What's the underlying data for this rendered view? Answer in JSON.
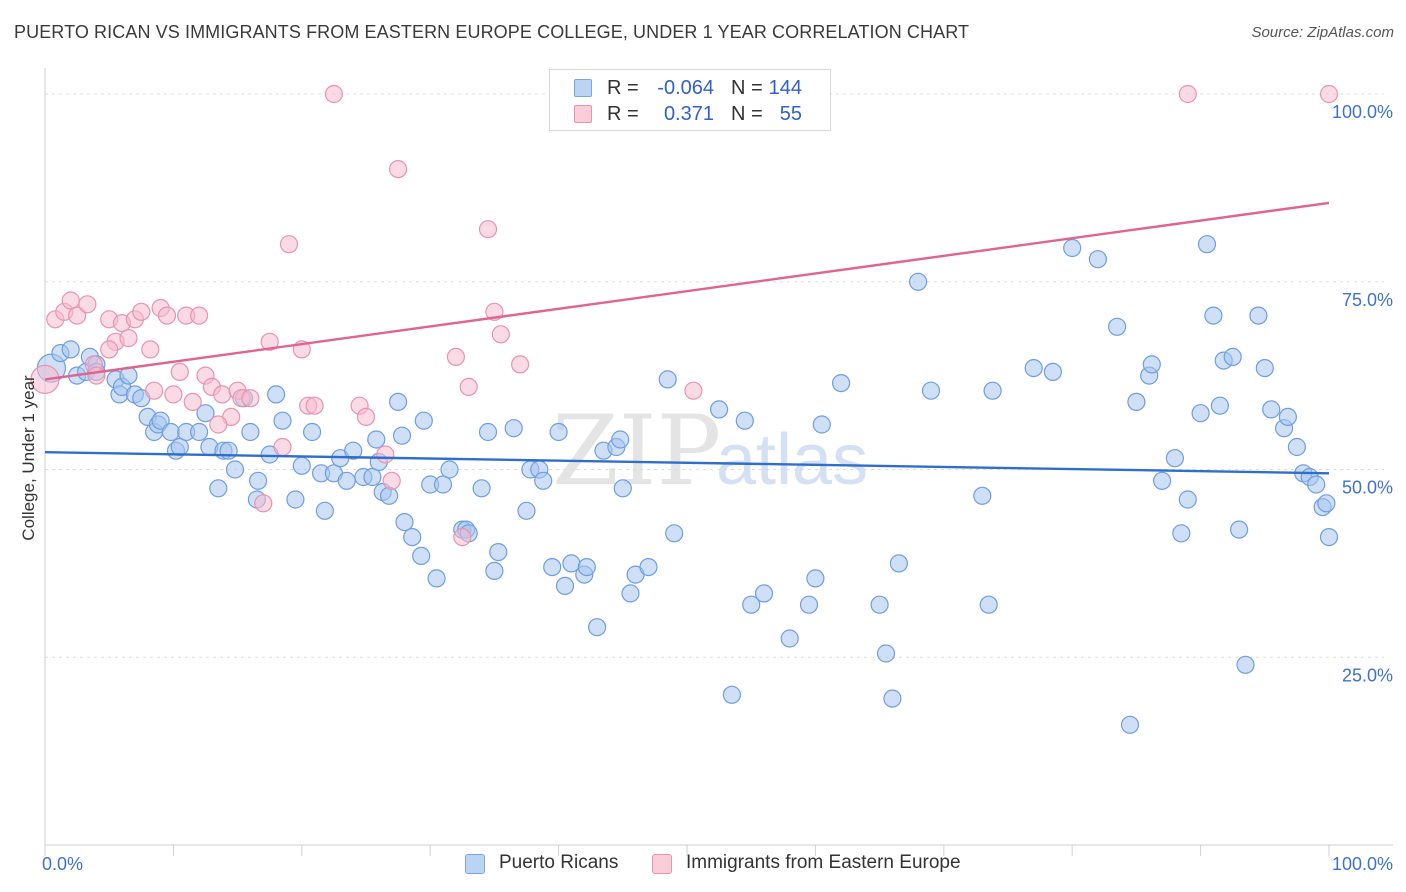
{
  "header": {
    "title": "PUERTO RICAN VS IMMIGRANTS FROM EASTERN EUROPE COLLEGE, UNDER 1 YEAR CORRELATION CHART",
    "source": "Source: ZipAtlas.com"
  },
  "legend": {
    "rows": [
      {
        "r_label": "R =",
        "r_value": "-0.064",
        "n_label": "N =",
        "n_value": "144"
      },
      {
        "r_label": "R =",
        "r_value": "0.371",
        "n_label": "N =",
        "n_value": "55"
      }
    ],
    "bottom": [
      "Puerto Ricans",
      "Immigrants from Eastern Europe"
    ]
  },
  "watermark": {
    "zip": "ZIP",
    "atlas": "atlas"
  },
  "colors": {
    "blue_fill": "#a8c4ef",
    "blue_stroke": "#6f9ee0",
    "blue_line": "#2f6fcb",
    "pink_fill": "#f6bccd",
    "pink_stroke": "#e993b0",
    "pink_line": "#e0648f",
    "axis_label": "#3f72c9",
    "grid": "#dddddd"
  },
  "chart_data": {
    "type": "scatter",
    "title": "PUERTO RICAN VS IMMIGRANTS FROM EASTERN EUROPE COLLEGE, UNDER 1 YEAR CORRELATION CHART",
    "xlabel": "",
    "ylabel": "College, Under 1 year",
    "xlim": [
      0,
      100
    ],
    "ylim": [
      0,
      102
    ],
    "x_tick_labels": [
      "0.0%",
      "100.0%"
    ],
    "y_ticks": [
      25,
      50,
      75,
      100
    ],
    "y_tick_labels": [
      "25.0%",
      "50.0%",
      "75.0%",
      "100.0%"
    ],
    "series": [
      {
        "name": "Puerto Ricans",
        "r": -0.064,
        "n": 144,
        "trend": [
          [
            0,
            52.3
          ],
          [
            100,
            49.5
          ]
        ],
        "points": [
          [
            0.5,
            63.5
          ],
          [
            1.2,
            65.5
          ],
          [
            2,
            66
          ],
          [
            2.5,
            62.5
          ],
          [
            3.2,
            63
          ],
          [
            3.5,
            65
          ],
          [
            4,
            64
          ],
          [
            4,
            63
          ],
          [
            5.5,
            62
          ],
          [
            5.8,
            60
          ],
          [
            6,
            61
          ],
          [
            6.5,
            62.5
          ],
          [
            7,
            60
          ],
          [
            7.5,
            59.5
          ],
          [
            8,
            57
          ],
          [
            8.5,
            55
          ],
          [
            8.8,
            56
          ],
          [
            9,
            56.5
          ],
          [
            9.8,
            55
          ],
          [
            10.2,
            52.5
          ],
          [
            10.5,
            53
          ],
          [
            11,
            55
          ],
          [
            12,
            55
          ],
          [
            12.5,
            57.5
          ],
          [
            12.8,
            53
          ],
          [
            13.5,
            47.5
          ],
          [
            13.9,
            52.5
          ],
          [
            14.3,
            52.5
          ],
          [
            14.8,
            50
          ],
          [
            15.5,
            59.5
          ],
          [
            16,
            55
          ],
          [
            16.5,
            46
          ],
          [
            16.6,
            48.5
          ],
          [
            17.5,
            52
          ],
          [
            18,
            60
          ],
          [
            18.5,
            56.5
          ],
          [
            19.5,
            46
          ],
          [
            20,
            50.5
          ],
          [
            20.8,
            55
          ],
          [
            21.5,
            49.5
          ],
          [
            21.8,
            44.5
          ],
          [
            22.5,
            49.5
          ],
          [
            23,
            51.5
          ],
          [
            23.5,
            48.5
          ],
          [
            24,
            52.5
          ],
          [
            24.8,
            49
          ],
          [
            25.5,
            49
          ],
          [
            25.8,
            54
          ],
          [
            26,
            51
          ],
          [
            26.3,
            47
          ],
          [
            26.8,
            46.5
          ],
          [
            27.5,
            59
          ],
          [
            27.8,
            54.5
          ],
          [
            28,
            43
          ],
          [
            28.6,
            41
          ],
          [
            29.3,
            38.5
          ],
          [
            29.5,
            56.5
          ],
          [
            30,
            48
          ],
          [
            30.5,
            35.5
          ],
          [
            31,
            48
          ],
          [
            31.5,
            50
          ],
          [
            32.5,
            42
          ],
          [
            32.8,
            42
          ],
          [
            33,
            41.5
          ],
          [
            34,
            47.5
          ],
          [
            34.5,
            55
          ],
          [
            35,
            36.5
          ],
          [
            35.3,
            39
          ],
          [
            36.5,
            55.5
          ],
          [
            37.5,
            44.5
          ],
          [
            37.8,
            50
          ],
          [
            38.5,
            50
          ],
          [
            38.8,
            48.5
          ],
          [
            39.5,
            37
          ],
          [
            40,
            55
          ],
          [
            40.5,
            34.5
          ],
          [
            41,
            37.5
          ],
          [
            42,
            36
          ],
          [
            42.2,
            37
          ],
          [
            43,
            29
          ],
          [
            43.5,
            52.5
          ],
          [
            44.5,
            53
          ],
          [
            44.8,
            54
          ],
          [
            45,
            47.5
          ],
          [
            45.6,
            33.5
          ],
          [
            46,
            36
          ],
          [
            47,
            37
          ],
          [
            49,
            41.5
          ],
          [
            53.5,
            20
          ],
          [
            55,
            32
          ],
          [
            56,
            33.5
          ],
          [
            58,
            27.5
          ],
          [
            59.5,
            32
          ],
          [
            60,
            35.5
          ],
          [
            62,
            61.5
          ],
          [
            65,
            32
          ],
          [
            65.5,
            25.5
          ],
          [
            66,
            19.5
          ],
          [
            66.5,
            37.5
          ],
          [
            68,
            75
          ],
          [
            69,
            60.5
          ],
          [
            73,
            46.5
          ],
          [
            73.5,
            32
          ],
          [
            73.8,
            60.5
          ],
          [
            77,
            63.5
          ],
          [
            78.5,
            63
          ],
          [
            80,
            79.5
          ],
          [
            82,
            78
          ],
          [
            83.5,
            69
          ],
          [
            84.5,
            16
          ],
          [
            85,
            59
          ],
          [
            86,
            62.5
          ],
          [
            86.2,
            64
          ],
          [
            87,
            48.5
          ],
          [
            88,
            51.5
          ],
          [
            88.5,
            41.5
          ],
          [
            89,
            46
          ],
          [
            90,
            57.5
          ],
          [
            90.5,
            80
          ],
          [
            91,
            70.5
          ],
          [
            91.5,
            58.5
          ],
          [
            91.8,
            64.5
          ],
          [
            92.5,
            65
          ],
          [
            93,
            42
          ],
          [
            93.5,
            24
          ],
          [
            94.5,
            70.5
          ],
          [
            95,
            63.5
          ],
          [
            95.5,
            58
          ],
          [
            96.5,
            55.5
          ],
          [
            96.8,
            57
          ],
          [
            97.5,
            53
          ],
          [
            98,
            49.5
          ],
          [
            98.5,
            49
          ],
          [
            99,
            48
          ],
          [
            99.5,
            45
          ],
          [
            99.8,
            45.5
          ],
          [
            100,
            41
          ],
          [
            54.5,
            56.5
          ],
          [
            60.5,
            56
          ],
          [
            52.5,
            58
          ],
          [
            48.5,
            62
          ]
        ]
      },
      {
        "name": "Immigrants from Eastern Europe",
        "r": 0.371,
        "n": 55,
        "trend": [
          [
            0,
            62
          ],
          [
            100,
            85.5
          ]
        ],
        "points": [
          [
            0,
            62
          ],
          [
            0.8,
            70
          ],
          [
            1.5,
            71
          ],
          [
            2,
            72.5
          ],
          [
            2.5,
            70.5
          ],
          [
            3.3,
            72
          ],
          [
            3.8,
            64
          ],
          [
            4,
            62.5
          ],
          [
            5,
            70
          ],
          [
            5.5,
            67
          ],
          [
            6,
            69.5
          ],
          [
            6.5,
            67.5
          ],
          [
            7,
            70
          ],
          [
            7.5,
            71
          ],
          [
            8.2,
            66
          ],
          [
            8.5,
            60.5
          ],
          [
            9,
            71.5
          ],
          [
            9.5,
            70.5
          ],
          [
            10,
            60
          ],
          [
            10.5,
            63
          ],
          [
            11,
            70.5
          ],
          [
            11.5,
            59
          ],
          [
            12,
            70.5
          ],
          [
            12.5,
            62.5
          ],
          [
            13,
            61
          ],
          [
            13.8,
            60
          ],
          [
            14.5,
            57
          ],
          [
            15,
            60.5
          ],
          [
            15.3,
            59.5
          ],
          [
            17,
            45.5
          ],
          [
            17.5,
            67
          ],
          [
            18.5,
            53
          ],
          [
            19,
            80
          ],
          [
            20,
            66
          ],
          [
            20.5,
            58.5
          ],
          [
            22.5,
            100
          ],
          [
            24.5,
            58.5
          ],
          [
            25,
            57
          ],
          [
            26.5,
            52
          ],
          [
            27,
            48.5
          ],
          [
            27.5,
            90
          ],
          [
            32,
            65
          ],
          [
            32.5,
            41
          ],
          [
            33,
            61
          ],
          [
            34.5,
            82
          ],
          [
            35,
            71
          ],
          [
            35.5,
            68
          ],
          [
            37,
            64
          ],
          [
            50.5,
            60.5
          ],
          [
            89,
            100
          ],
          [
            100,
            100
          ],
          [
            13.5,
            56
          ],
          [
            16,
            59.5
          ],
          [
            21,
            58.5
          ],
          [
            5,
            66
          ]
        ]
      }
    ]
  }
}
